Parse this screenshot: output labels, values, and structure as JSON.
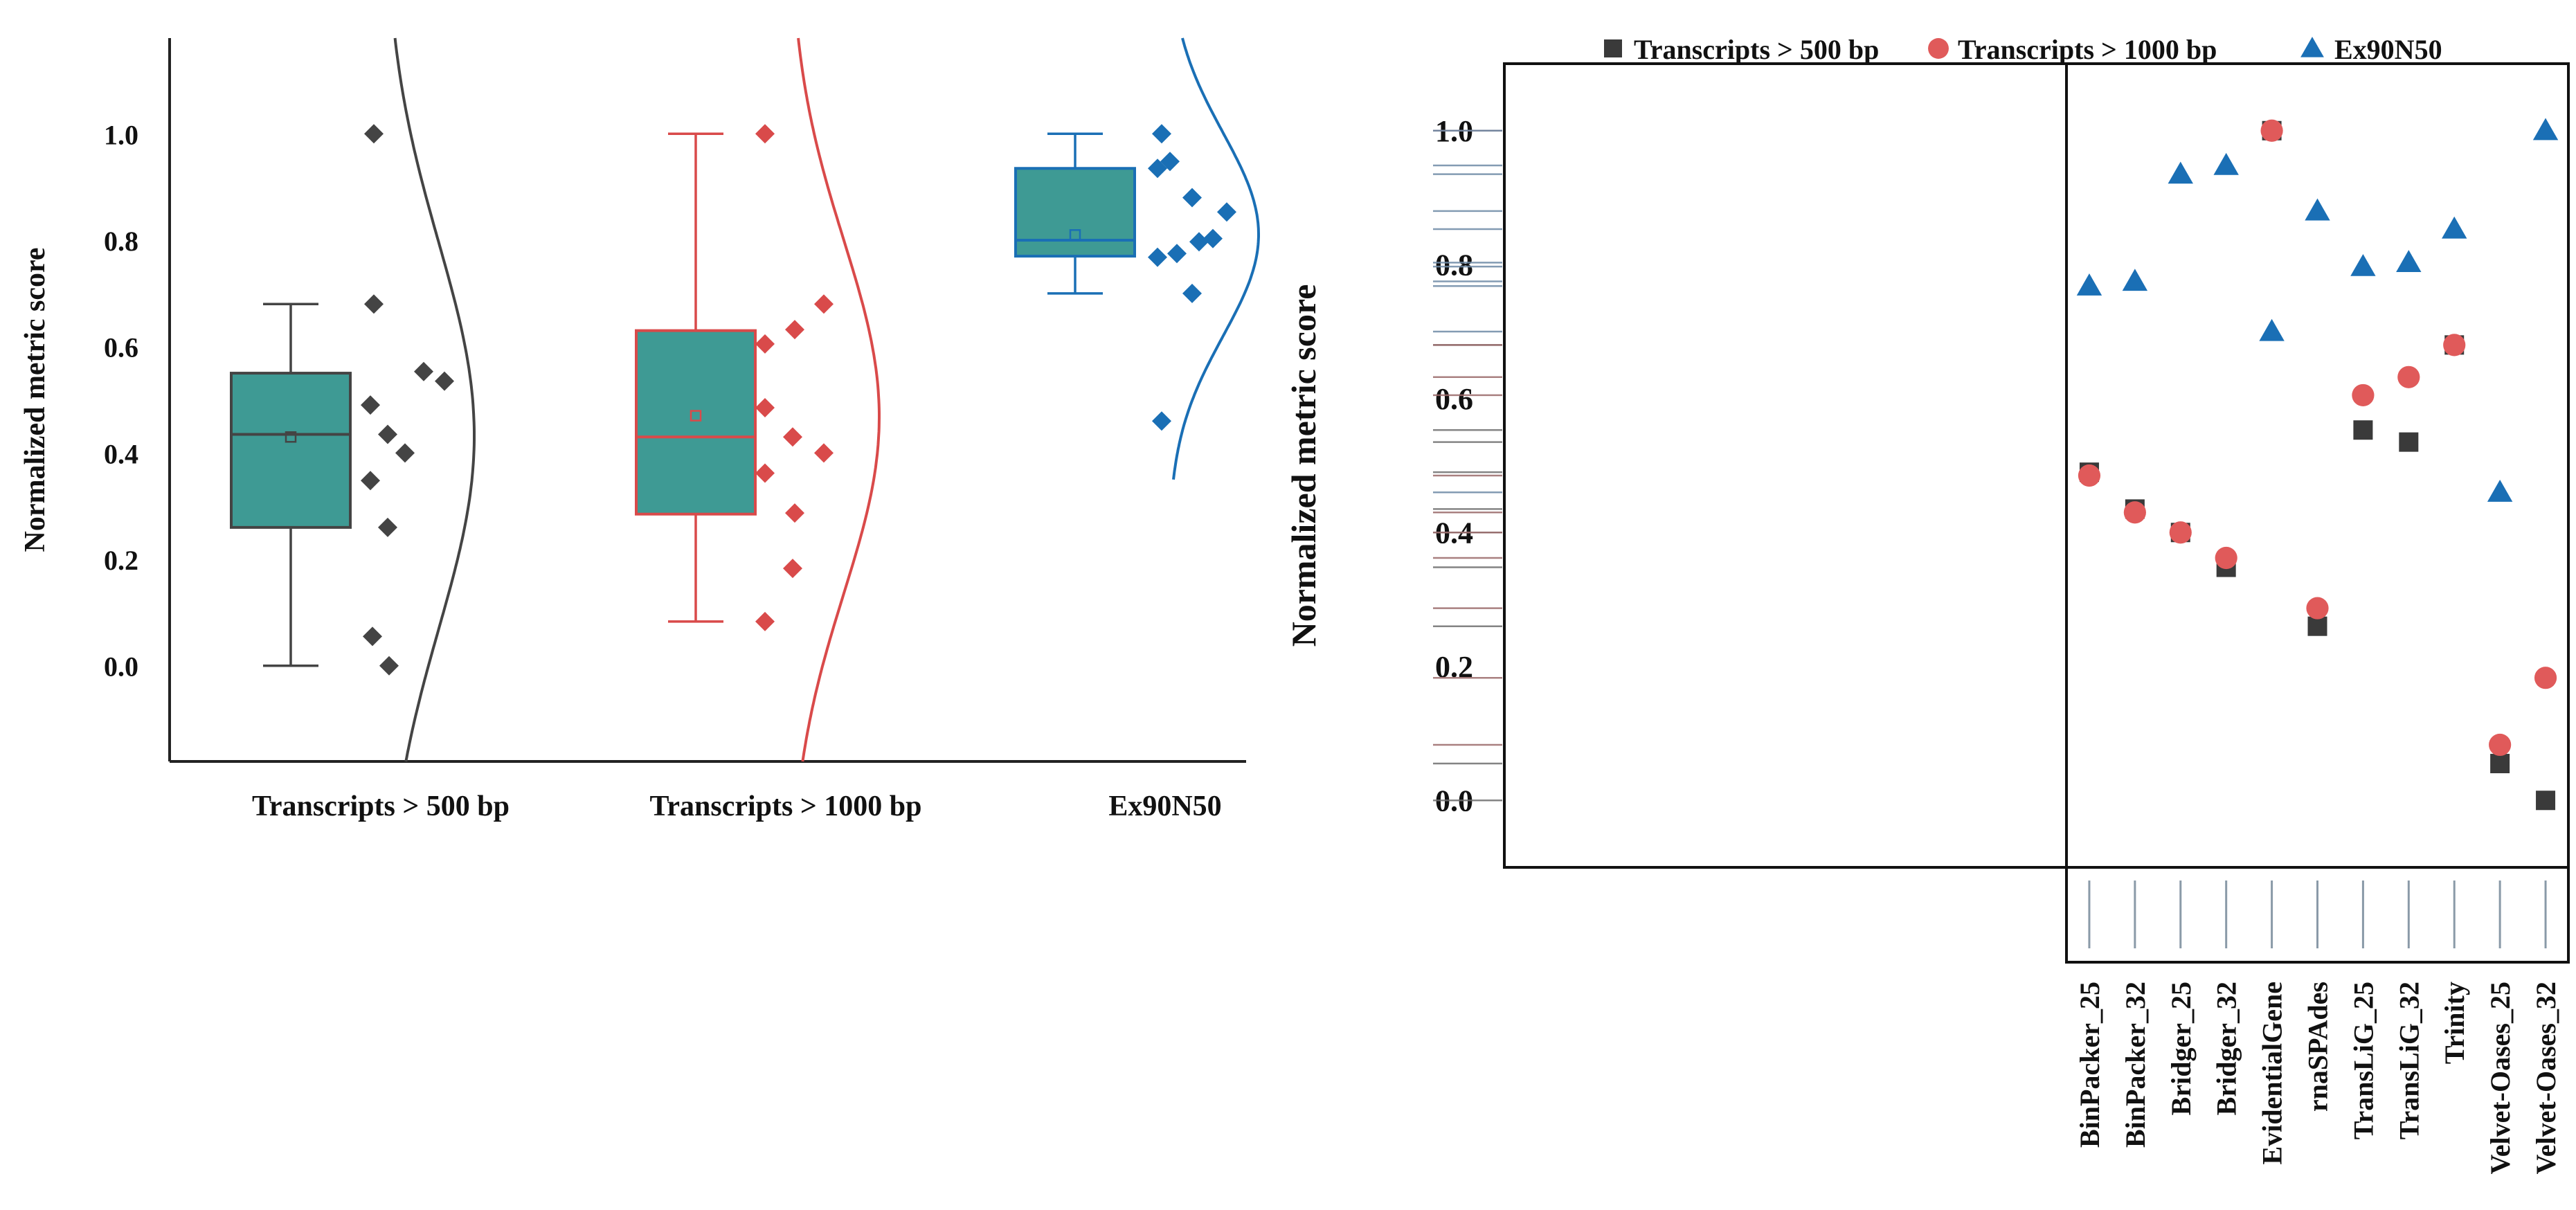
{
  "chart_data": [
    {
      "type": "raincloud",
      "ylabel": "Normalized metric score",
      "ylim": [
        -0.18,
        1.18
      ],
      "yticks": [
        0.0,
        0.2,
        0.4,
        0.6,
        0.8,
        1.0
      ],
      "ytick_labels": [
        "0.0",
        "0.2",
        "0.4",
        "0.6",
        "0.8",
        "1.0"
      ],
      "categories": [
        "Transcripts > 500 bp",
        "Transcripts > 1000 bp",
        "Ex90N50"
      ],
      "groups": [
        {
          "name": "Transcripts > 500 bp",
          "color": "#444444",
          "box": {
            "min": 0.0,
            "q1": 0.26,
            "median": 0.435,
            "q3": 0.55,
            "max": 0.68,
            "mean": 0.43
          },
          "points": [
            1.0,
            0.68,
            0.553,
            0.535,
            0.49,
            0.435,
            0.4,
            0.348,
            0.26,
            0.055,
            0.0
          ]
        },
        {
          "name": "Transcripts > 1000 bp",
          "color": "#d94a4a",
          "box": {
            "min": 0.083,
            "q1": 0.285,
            "median": 0.43,
            "q3": 0.63,
            "max": 1.0,
            "mean": 0.47
          },
          "points": [
            1.0,
            0.68,
            0.632,
            0.605,
            0.485,
            0.43,
            0.4,
            0.362,
            0.287,
            0.183,
            0.083
          ]
        },
        {
          "name": "Ex90N50",
          "color": "#1a6fb5",
          "box": {
            "min": 0.7,
            "q1": 0.77,
            "median": 0.8,
            "q3": 0.935,
            "max": 1.0,
            "mean": 0.81
          },
          "points": [
            1.0,
            0.948,
            0.935,
            0.88,
            0.853,
            0.803,
            0.797,
            0.775,
            0.768,
            0.7,
            0.46
          ]
        }
      ]
    },
    {
      "type": "scatter",
      "ylabel": "Normalized metric score",
      "ylim": [
        -0.1,
        1.1
      ],
      "yticks": [
        0.0,
        0.2,
        0.4,
        0.6,
        0.8,
        1.0
      ],
      "ytick_labels": [
        "0.0",
        "0.2",
        "0.4",
        "0.6",
        "0.8",
        "1.0"
      ],
      "legend_position": "top",
      "categories": [
        "BinPacker_25",
        "BinPacker_32",
        "Bridger_25",
        "Bridger_32",
        "EvidentialGene",
        "rnaSPAdes",
        "TransLiG_25",
        "TransLiG_32",
        "Trinity",
        "Velvet-Oases_25",
        "Velvet-Oases_32"
      ],
      "series": [
        {
          "name": "Transcripts > 500 bp",
          "marker": "square",
          "color": "#3a3a3a",
          "values": [
            0.49,
            0.435,
            0.4,
            0.348,
            1.0,
            0.26,
            0.553,
            0.535,
            0.68,
            0.055,
            0.0
          ]
        },
        {
          "name": "Transcripts > 1000 bp",
          "marker": "circle",
          "color": "#e05a5a",
          "values": [
            0.485,
            0.43,
            0.4,
            0.362,
            1.0,
            0.287,
            0.605,
            0.632,
            0.68,
            0.083,
            0.183
          ]
        },
        {
          "name": "Ex90N50",
          "marker": "triangle",
          "color": "#1a6fb5",
          "values": [
            0.768,
            0.775,
            0.935,
            0.948,
            0.7,
            0.88,
            0.797,
            0.803,
            0.853,
            0.46,
            1.0
          ]
        }
      ]
    }
  ]
}
